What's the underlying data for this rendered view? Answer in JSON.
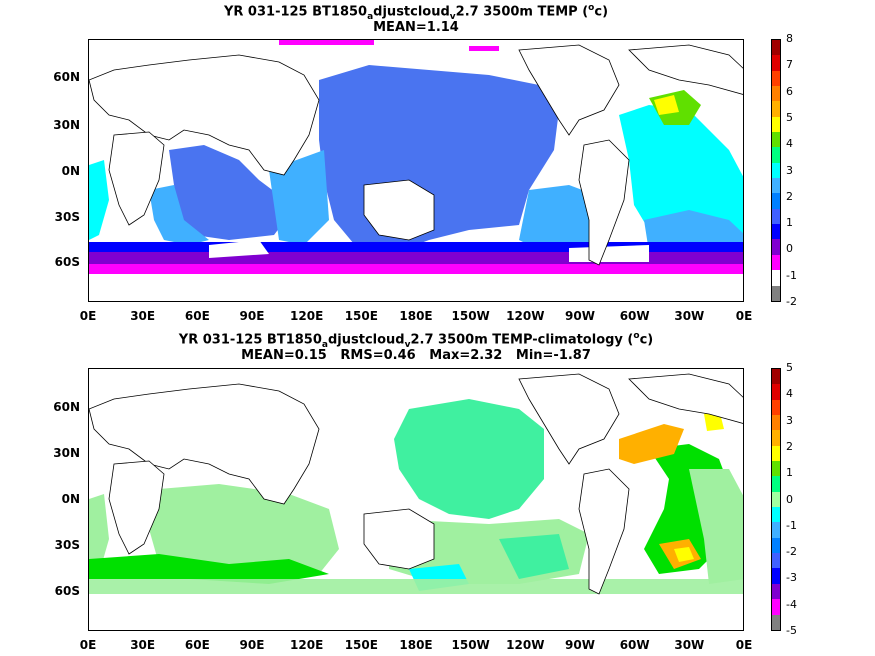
{
  "panel1": {
    "title_line1": "YR 031-125 BT1850",
    "sub1": "a",
    "title_mid": "djustcloud",
    "sub2": "v",
    "title_end": "2.7 3500m TEMP (",
    "sup": "o",
    "title_close": "c)",
    "title_line2": "MEAN=1.14",
    "colorbar_labels": [
      "8",
      "7",
      "6",
      "5",
      "4",
      "3",
      "2",
      "1",
      "0",
      "-1",
      "-2"
    ],
    "colorbar_colors": [
      "#a00000",
      "#e00000",
      "#ff4000",
      "#ff8000",
      "#ffb000",
      "#ffff00",
      "#60e000",
      "#00ff80",
      "#00ffff",
      "#40b0ff",
      "#0080ff",
      "#4060ff",
      "#0000ff",
      "#8000d0",
      "#ff00ff",
      "#ffffff",
      "#808080"
    ]
  },
  "panel2": {
    "title_line1": "YR 031-125 BT1850",
    "sub1": "a",
    "title_mid": "djustcloud",
    "sub2": "v",
    "title_end": "2.7 3500m TEMP-climatology (",
    "sup": "o",
    "title_close": "c)",
    "title_line2": "MEAN=0.15   RMS=0.46   Max=2.32   Min=-1.87",
    "colorbar_labels": [
      "5",
      "4",
      "3",
      "2",
      "1",
      "0",
      "-1",
      "-2",
      "-3",
      "-4",
      "-5"
    ],
    "colorbar_colors": [
      "#a00000",
      "#e00000",
      "#ff4000",
      "#ff8000",
      "#ffb000",
      "#ffff00",
      "#60e000",
      "#00ff80",
      "#a0ffa0",
      "#00ffff",
      "#40b0ff",
      "#0080ff",
      "#4060ff",
      "#0000ff",
      "#8000d0",
      "#ff00ff",
      "#808080"
    ]
  },
  "lat_labels": [
    "60N",
    "30N",
    "0N",
    "30S",
    "60S"
  ],
  "lon_labels": [
    "0E",
    "30E",
    "60E",
    "90E",
    "120E",
    "150E",
    "180E",
    "150W",
    "120W",
    "90W",
    "60W",
    "30W",
    "0E"
  ],
  "colors": {
    "p1_ocean": "#4a74f0",
    "p1_light": "#40b0ff",
    "p1_cyan": "#00ffff",
    "p1_purple": "#8000d0",
    "p1_magenta": "#ff00ff",
    "p1_blue": "#0000ff",
    "p2_ocean": "#40f0a0",
    "p2_light": "#a0f0a0",
    "p2_green": "#00e000",
    "p2_orange": "#ffb000",
    "p2_yellow": "#ffff00",
    "p2_cyan": "#00ffff"
  }
}
